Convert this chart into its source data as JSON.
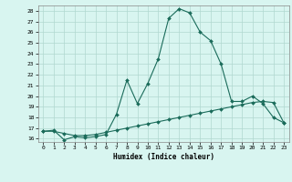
{
  "x": [
    0,
    1,
    2,
    3,
    4,
    5,
    6,
    7,
    8,
    9,
    10,
    11,
    12,
    13,
    14,
    15,
    16,
    17,
    18,
    19,
    20,
    21,
    22,
    23
  ],
  "line1": [
    16.7,
    16.8,
    15.9,
    16.2,
    16.1,
    16.2,
    16.4,
    18.3,
    21.5,
    19.3,
    21.2,
    23.5,
    27.3,
    28.2,
    27.8,
    26.0,
    25.2,
    23.0,
    19.5,
    19.5,
    20.0,
    19.3,
    18.0,
    17.5
  ],
  "line2": [
    16.7,
    16.7,
    16.5,
    16.3,
    16.3,
    16.4,
    16.6,
    16.8,
    17.0,
    17.2,
    17.4,
    17.6,
    17.8,
    18.0,
    18.2,
    18.4,
    18.6,
    18.8,
    19.0,
    19.2,
    19.4,
    19.5,
    19.4,
    17.5
  ],
  "bg_color": "#d8f5f0",
  "grid_color": "#b0d8d0",
  "line_color": "#1a6b5a",
  "xlabel": "Humidex (Indice chaleur)",
  "ylim": [
    15.7,
    28.5
  ],
  "xlim": [
    -0.5,
    23.5
  ],
  "yticks": [
    16,
    17,
    18,
    19,
    20,
    21,
    22,
    23,
    24,
    25,
    26,
    27,
    28
  ],
  "xticks": [
    0,
    1,
    2,
    3,
    4,
    5,
    6,
    7,
    8,
    9,
    10,
    11,
    12,
    13,
    14,
    15,
    16,
    17,
    18,
    19,
    20,
    21,
    22,
    23
  ]
}
